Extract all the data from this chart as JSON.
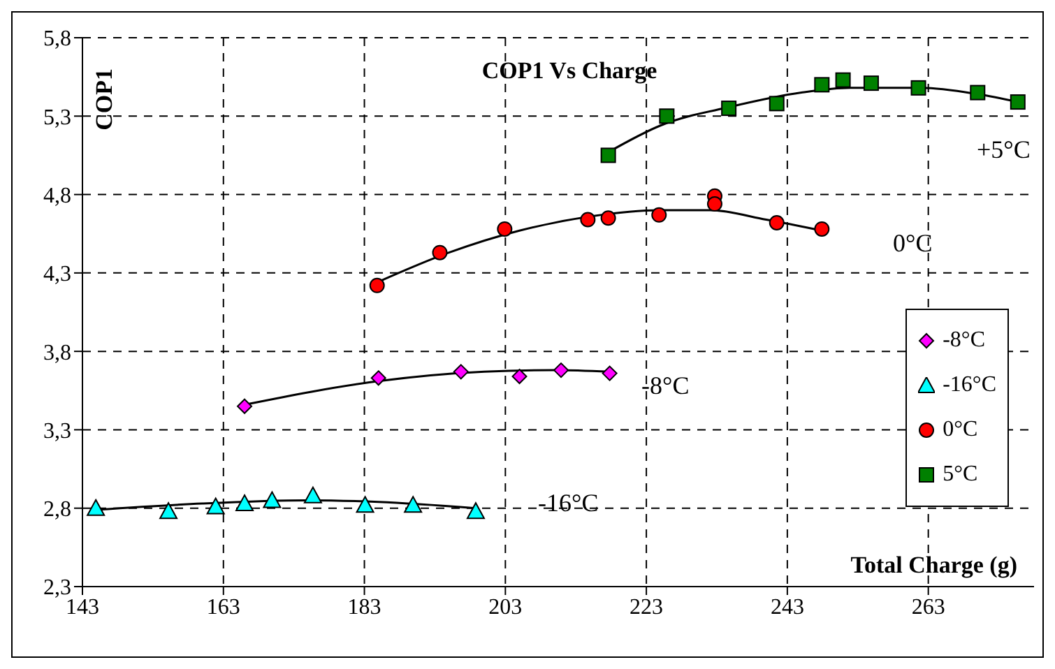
{
  "chart_data": {
    "type": "scatter",
    "title": "COP1 Vs Charge",
    "xlabel": "Total Charge (g)",
    "ylabel": "COP1",
    "xlim": [
      143,
      278
    ],
    "xticks": [
      143,
      163,
      183,
      203,
      223,
      243,
      263
    ],
    "ylim": [
      2.3,
      5.8
    ],
    "yticks": [
      {
        "value": 2.3,
        "label": "2,3"
      },
      {
        "value": 2.8,
        "label": "2,8"
      },
      {
        "value": 3.3,
        "label": "3,3"
      },
      {
        "value": 3.8,
        "label": "3,8"
      },
      {
        "value": 4.3,
        "label": "4,3"
      },
      {
        "value": 4.8,
        "label": "4,8"
      },
      {
        "value": 5.3,
        "label": "5,3"
      },
      {
        "value": 5.8,
        "label": "5,8"
      }
    ],
    "grid": true,
    "line_style": "dashed",
    "legend": "right",
    "series": [
      {
        "name": "-8°C",
        "color": "#ff00ff",
        "marker": "diamond",
        "x": [
          166.0,
          185.0,
          196.7,
          205.0,
          210.9,
          217.8
        ],
        "values": [
          3.45,
          3.63,
          3.67,
          3.64,
          3.68,
          3.66
        ]
      },
      {
        "name": "-16°C",
        "color": "#00ffff",
        "marker": "triangle",
        "x": [
          144.9,
          155.2,
          161.9,
          166.0,
          169.9,
          175.7,
          183.1,
          189.9,
          198.8
        ],
        "values": [
          2.8,
          2.78,
          2.81,
          2.83,
          2.85,
          2.88,
          2.82,
          2.82,
          2.78
        ]
      },
      {
        "name": "0°C",
        "color": "#ff0000",
        "marker": "circle",
        "x": [
          184.8,
          193.7,
          202.9,
          214.7,
          217.6,
          224.8,
          232.7,
          232.7,
          241.5,
          247.9
        ],
        "values": [
          4.22,
          4.43,
          4.58,
          4.64,
          4.65,
          4.67,
          4.79,
          4.74,
          4.62,
          4.58
        ]
      },
      {
        "name": "5°C",
        "color": "#008000",
        "marker": "square",
        "x": [
          217.6,
          225.9,
          234.7,
          241.5,
          247.9,
          250.9,
          254.9,
          261.6,
          270.0,
          275.7
        ],
        "values": [
          5.05,
          5.3,
          5.35,
          5.38,
          5.5,
          5.53,
          5.51,
          5.48,
          5.45,
          5.39
        ]
      },
      {
        "type": "line",
        "color": "#000000",
        "line_style": "solid",
        "x": [
          144.9,
          160,
          175,
          185,
          198.8
        ],
        "values": [
          2.79,
          2.83,
          2.85,
          2.84,
          2.8
        ]
      },
      {
        "type": "line",
        "color": "#000000",
        "line_style": "solid",
        "x": [
          166,
          185,
          200,
          210,
          217.8
        ],
        "values": [
          3.46,
          3.61,
          3.67,
          3.68,
          3.67
        ]
      },
      {
        "type": "line",
        "color": "#000000",
        "line_style": "solid",
        "x": [
          184.8,
          195,
          205,
          215,
          225,
          232,
          240,
          247.9
        ],
        "values": [
          4.24,
          4.43,
          4.57,
          4.66,
          4.7,
          4.7,
          4.64,
          4.57
        ]
      },
      {
        "type": "line",
        "color": "#000000",
        "line_style": "solid",
        "x": [
          217.6,
          225,
          235,
          245,
          252,
          262,
          270,
          275.7
        ],
        "values": [
          5.07,
          5.24,
          5.36,
          5.45,
          5.48,
          5.48,
          5.44,
          5.39
        ]
      }
    ],
    "annotations": [
      "+5°C",
      "0°C",
      "-8°C",
      "-16°C"
    ]
  }
}
